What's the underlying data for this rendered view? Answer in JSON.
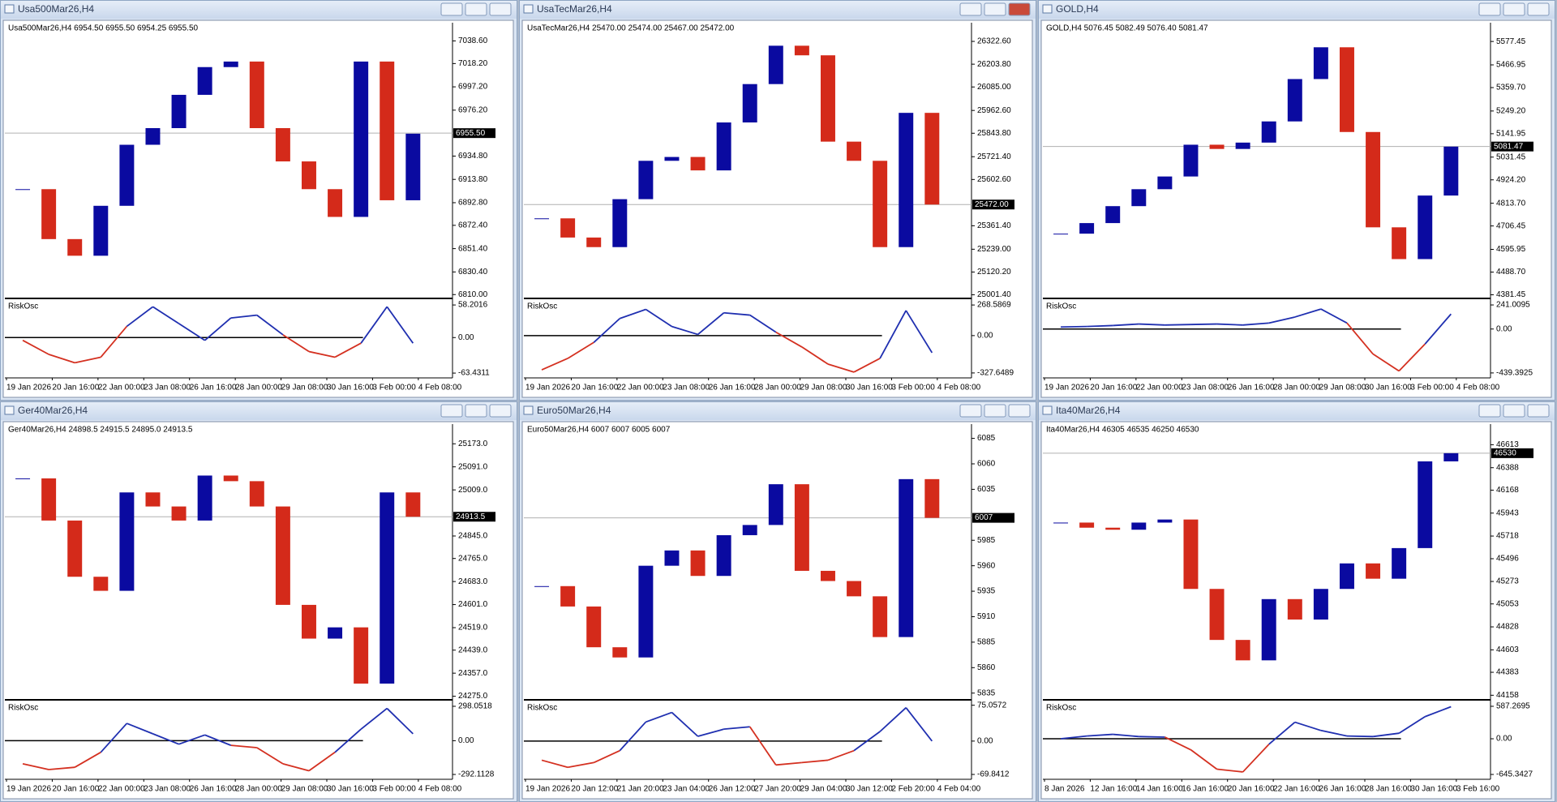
{
  "chart_data": [
    {
      "type": "candlestick",
      "title": "Usa500Mar26,H4",
      "subtitle": "Usa500Mar26,H4  6954.50 6955.50 6954.25 6955.50",
      "ylim": [
        6808,
        7055
      ],
      "yticks": [
        {
          "value": 7038.6,
          "label": "7038.60"
        },
        {
          "value": 7018.2,
          "label": "7018.20"
        },
        {
          "value": 6997.2,
          "label": "6997.20"
        },
        {
          "value": 6976.2,
          "label": "6976.20"
        },
        {
          "value": 6934.8,
          "label": "6934.80"
        },
        {
          "value": 6913.8,
          "label": "6913.80"
        },
        {
          "value": 6892.8,
          "label": "6892.80"
        },
        {
          "value": 6872.4,
          "label": "6872.40"
        },
        {
          "value": 6851.4,
          "label": "6851.40"
        },
        {
          "value": 6830.4,
          "label": "6830.40"
        },
        {
          "value": 6810,
          "label": "6810.00"
        }
      ],
      "last_price": {
        "value": 6955.5,
        "label": "6955.50"
      },
      "values": [
        6905,
        6860,
        6845,
        6890,
        6945,
        6960,
        6990,
        7015,
        7020,
        6960,
        6930,
        6905,
        6880,
        7020,
        6895,
        6955
      ],
      "up_color": "#0a0aa0",
      "down_color": "#d42a1a",
      "time_labels": [
        "19 Jan 2026",
        "20 Jan 16:00",
        "22 Jan 00:00",
        "23 Jan 08:00",
        "26 Jan 16:00",
        "28 Jan 00:00",
        "29 Jan 08:00",
        "30 Jan 16:00",
        "3 Feb 00:00",
        "4 Feb 08:00"
      ],
      "oscillator": {
        "title": "RiskOsc",
        "ylim": [
          -72,
          67
        ],
        "yticks": [
          58.2016,
          {
            "value": 0,
            "label": "0.00"
          },
          -63.4311
        ],
        "values": [
          -5,
          -30,
          -45,
          -35,
          20,
          55,
          25,
          -5,
          35,
          40,
          5,
          -25,
          -35,
          -10,
          55,
          -10
        ],
        "up_color": "#1f2fb0",
        "down_color": "#d43020"
      }
    },
    {
      "type": "candlestick",
      "title": "UsaTecMar26,H4",
      "subtitle": "UsaTecMar26,H4  25470.00 25474.00 25467.00 25472.00",
      "ylim": [
        24991,
        26420
      ],
      "yticks": [
        {
          "value": 26322.6,
          "label": "26322.60"
        },
        {
          "value": 26203.8,
          "label": "26203.80"
        },
        {
          "value": 26085,
          "label": "26085.00"
        },
        {
          "value": 25962.6,
          "label": "25962.60"
        },
        {
          "value": 25843.8,
          "label": "25843.80"
        },
        {
          "value": 25721.4,
          "label": "25721.40"
        },
        {
          "value": 25602.6,
          "label": "25602.60"
        },
        {
          "value": 25361.4,
          "label": "25361.40"
        },
        {
          "value": 25239,
          "label": "25239.00"
        },
        {
          "value": 25120.2,
          "label": "25120.20"
        },
        {
          "value": 25001.4,
          "label": "25001.40"
        }
      ],
      "last_price": {
        "value": 25472,
        "label": "25472.00"
      },
      "values": [
        25400,
        25300,
        25250,
        25500,
        25700,
        25720,
        25650,
        25900,
        26100,
        26300,
        26250,
        25800,
        25700,
        25250,
        25950,
        25472
      ],
      "up_color": "#0a0aa0",
      "down_color": "#d42a1a",
      "time_labels": [
        "19 Jan 2026",
        "20 Jan 16:00",
        "22 Jan 00:00",
        "23 Jan 08:00",
        "26 Jan 16:00",
        "28 Jan 00:00",
        "29 Jan 08:00",
        "30 Jan 16:00",
        "3 Feb 00:00",
        "4 Feb 08:00"
      ],
      "oscillator": {
        "title": "RiskOsc",
        "ylim": [
          -371,
          312
        ],
        "yticks": [
          268.5869,
          {
            "value": 0,
            "label": "0.00"
          },
          -327.6489
        ],
        "values": [
          -300,
          -200,
          -60,
          150,
          230,
          80,
          10,
          200,
          180,
          30,
          -100,
          -250,
          -320,
          -200,
          220,
          -150
        ],
        "up_color": "#1f2fb0",
        "down_color": "#d43020"
      }
    },
    {
      "type": "candlestick",
      "title": "GOLD,H4",
      "subtitle": "GOLD,H4  5076.45 5082.49 5076.40 5081.47",
      "ylim": [
        4372,
        5666
      ],
      "yticks": [
        5577.45,
        5466.95,
        {
          "value": 5359.7,
          "label": "5359.70"
        },
        {
          "value": 5249.2,
          "label": "5249.20"
        },
        5141.95,
        5031.45,
        {
          "value": 4924.2,
          "label": "4924.20"
        },
        {
          "value": 4813.7,
          "label": "4813.70"
        },
        4706.45,
        4595.95,
        {
          "value": 4488.7,
          "label": "4488.70"
        },
        4381.45
      ],
      "last_price": 5081.47,
      "values": [
        4670,
        4720,
        4800,
        4880,
        4940,
        5090,
        5070,
        5100,
        5200,
        5400,
        5550,
        5150,
        4700,
        4550,
        4850,
        5081
      ],
      "up_color": "#0a0aa0",
      "down_color": "#d42a1a",
      "time_labels": [
        "19 Jan 2026",
        "20 Jan 16:00",
        "22 Jan 00:00",
        "23 Jan 08:00",
        "26 Jan 16:00",
        "28 Jan 00:00",
        "29 Jan 08:00",
        "30 Jan 16:00",
        "3 Feb 00:00",
        "4 Feb 08:00"
      ],
      "oscillator": {
        "title": "RiskOsc",
        "ylim": [
          -489,
          290
        ],
        "yticks": [
          241.0095,
          {
            "value": 0,
            "label": "0.00"
          },
          -439.3925
        ],
        "values": [
          20,
          25,
          35,
          50,
          40,
          45,
          50,
          40,
          60,
          120,
          200,
          60,
          -250,
          -420,
          -150,
          150
        ],
        "up_color": "#1f2fb0",
        "down_color": "#d43020"
      }
    },
    {
      "type": "candlestick",
      "title": "Ger40Mar26,H4",
      "subtitle": "Ger40Mar26,H4  24898.5 24915.5 24895.0 24913.5",
      "ylim": [
        24268,
        25243
      ],
      "yticks": [
        {
          "value": 25173,
          "label": "25173.0"
        },
        {
          "value": 25091,
          "label": "25091.0"
        },
        {
          "value": 25009,
          "label": "25009.0"
        },
        {
          "value": 24845,
          "label": "24845.0"
        },
        {
          "value": 24765,
          "label": "24765.0"
        },
        {
          "value": 24683,
          "label": "24683.0"
        },
        {
          "value": 24601,
          "label": "24601.0"
        },
        {
          "value": 24519,
          "label": "24519.0"
        },
        {
          "value": 24439,
          "label": "24439.0"
        },
        {
          "value": 24357,
          "label": "24357.0"
        },
        {
          "value": 24275,
          "label": "24275.0"
        }
      ],
      "last_price": 24913.5,
      "values": [
        25050,
        24900,
        24700,
        24650,
        25000,
        24950,
        24900,
        25060,
        25040,
        24950,
        24600,
        24480,
        24520,
        24320,
        25000,
        24913.5
      ],
      "up_color": "#0a0aa0",
      "down_color": "#d42a1a",
      "time_labels": [
        "19 Jan 2026",
        "20 Jan 16:00",
        "22 Jan 00:00",
        "23 Jan 08:00",
        "26 Jan 16:00",
        "28 Jan 00:00",
        "29 Jan 08:00",
        "30 Jan 16:00",
        "3 Feb 00:00",
        "4 Feb 08:00"
      ],
      "oscillator": {
        "title": "RiskOsc",
        "ylim": [
          -334,
          340
        ],
        "yticks": [
          298.0518,
          {
            "value": 0,
            "label": "0.00"
          },
          -292.1128
        ],
        "values": [
          -200,
          -250,
          -230,
          -100,
          150,
          60,
          -30,
          50,
          -40,
          -60,
          -200,
          -260,
          -100,
          100,
          280,
          60
        ],
        "up_color": "#1f2fb0",
        "down_color": "#d43020"
      }
    },
    {
      "type": "candlestick",
      "title": "Euro50Mar26,H4",
      "subtitle": "Euro50Mar26,H4  6007 6007 6005 6007",
      "ylim": [
        5830,
        6099
      ],
      "yticks": [
        6085,
        6060,
        6035,
        5985,
        5960,
        5935,
        5910,
        5885,
        5860,
        5835
      ],
      "last_price": 6007,
      "values": [
        5940,
        5920,
        5880,
        5870,
        5960,
        5975,
        5950,
        5990,
        6000,
        6040,
        5955,
        5945,
        5930,
        5890,
        6045,
        6007
      ],
      "up_color": "#0a0aa0",
      "down_color": "#d42a1a",
      "time_labels": [
        "19 Jan 2026",
        "20 Jan 12:00",
        "21 Jan 20:00",
        "23 Jan 04:00",
        "26 Jan 12:00",
        "27 Jan 20:00",
        "29 Jan 04:00",
        "30 Jan 12:00",
        "2 Feb 20:00",
        "4 Feb 04:00"
      ],
      "oscillator": {
        "title": "RiskOsc",
        "ylim": [
          -80,
          83
        ],
        "yticks": [
          75.0572,
          {
            "value": 0,
            "label": "0.00"
          },
          -69.8412
        ],
        "values": [
          -40,
          -55,
          -45,
          -20,
          40,
          60,
          10,
          25,
          30,
          -50,
          -45,
          -40,
          -20,
          20,
          70,
          0
        ],
        "up_color": "#1f2fb0",
        "down_color": "#d43020"
      }
    },
    {
      "type": "candlestick",
      "title": "Ita40Mar26,H4",
      "subtitle": "Ita40Mar26,H4  46305 46535 46250 46530",
      "ylim": [
        44129,
        46815
      ],
      "yticks": [
        46613,
        46388,
        46168,
        45943,
        45718,
        45496,
        45273,
        45053,
        44828,
        44603,
        44383,
        44158
      ],
      "last_price": 46530,
      "values": [
        45850,
        45800,
        45780,
        45850,
        45880,
        45200,
        44700,
        44500,
        45100,
        44900,
        45200,
        45450,
        45300,
        45600,
        46450,
        46530
      ],
      "up_color": "#0a0aa0",
      "down_color": "#d42a1a",
      "time_labels": [
        "8 Jan 2026",
        "12 Jan 16:00",
        "14 Jan 16:00",
        "16 Jan 16:00",
        "20 Jan 16:00",
        "22 Jan 16:00",
        "26 Jan 16:00",
        "28 Jan 16:00",
        "30 Jan 16:00",
        "3 Feb 16:00"
      ],
      "oscillator": {
        "title": "RiskOsc",
        "ylim": [
          -733,
          675
        ],
        "yticks": [
          587.2695,
          {
            "value": 0,
            "label": "0.00"
          },
          -645.3427
        ],
        "values": [
          0,
          50,
          80,
          40,
          30,
          -200,
          -550,
          -600,
          -100,
          300,
          150,
          50,
          40,
          100,
          400,
          580
        ],
        "up_color": "#1f2fb0",
        "down_color": "#d43020"
      }
    }
  ]
}
